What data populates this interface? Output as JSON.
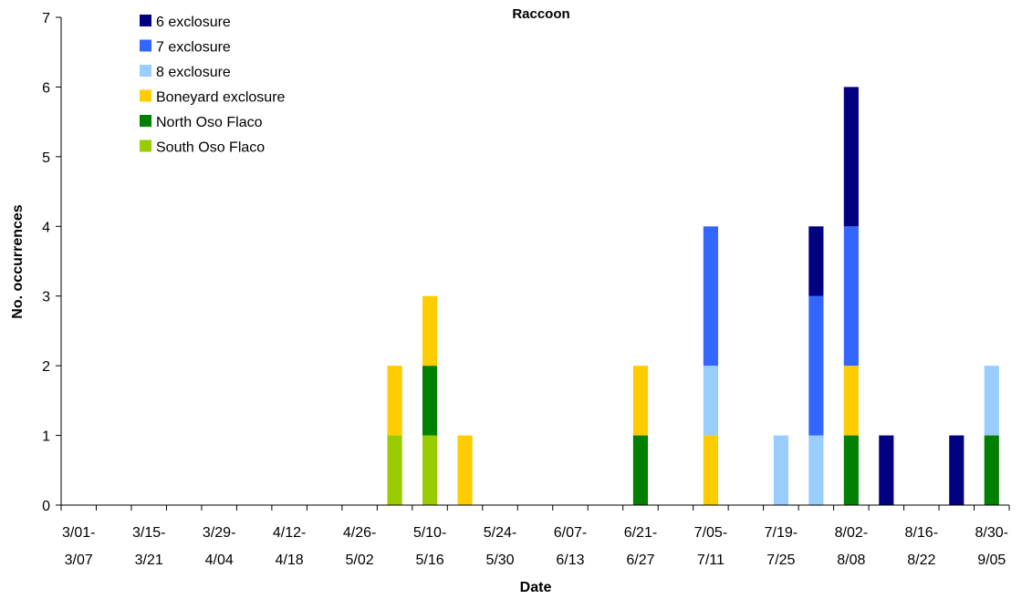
{
  "chart_data": {
    "type": "bar",
    "stacked": true,
    "title": "Raccoon",
    "xlabel": "Date",
    "ylabel": "No. occurrences",
    "ylim": [
      0,
      7
    ],
    "yticks": [
      0,
      1,
      2,
      3,
      4,
      5,
      6,
      7
    ],
    "grid": false,
    "legend_position": "top-left",
    "x_tick_labels": [
      [
        "3/01-",
        "3/07"
      ],
      [
        "3/15-",
        "3/21"
      ],
      [
        "3/29-",
        "4/04"
      ],
      [
        "4/12-",
        "4/18"
      ],
      [
        "4/26-",
        "5/02"
      ],
      [
        "5/10-",
        "5/16"
      ],
      [
        "5/24-",
        "5/30"
      ],
      [
        "6/07-",
        "6/13"
      ],
      [
        "6/21-",
        "6/27"
      ],
      [
        "7/05-",
        "7/11"
      ],
      [
        "7/19-",
        "7/25"
      ],
      [
        "8/02-",
        "8/08"
      ],
      [
        "8/16-",
        "8/22"
      ],
      [
        "8/30-",
        "9/05"
      ]
    ],
    "categories": [
      "3/01-3/07",
      "3/08-3/14",
      "3/15-3/21",
      "3/22-3/28",
      "3/29-4/04",
      "4/05-4/11",
      "4/12-4/18",
      "4/19-4/25",
      "4/26-5/02",
      "5/03-5/09",
      "5/10-5/16",
      "5/17-5/23",
      "5/24-5/30",
      "5/31-6/06",
      "6/07-6/13",
      "6/14-6/20",
      "6/21-6/27",
      "6/28-7/04",
      "7/05-7/11",
      "7/12-7/18",
      "7/19-7/25",
      "7/26-8/01",
      "8/02-8/08",
      "8/09-8/15",
      "8/16-8/22",
      "8/23-8/29",
      "8/30-9/05"
    ],
    "series": [
      {
        "name": "South Oso Flaco",
        "color": "#99cc00",
        "values": [
          0,
          0,
          0,
          0,
          0,
          0,
          0,
          0,
          0,
          1,
          1,
          0,
          0,
          0,
          0,
          0,
          0,
          0,
          0,
          0,
          0,
          0,
          0,
          0,
          0,
          0,
          0
        ]
      },
      {
        "name": "North Oso Flaco",
        "color": "#008000",
        "values": [
          0,
          0,
          0,
          0,
          0,
          0,
          0,
          0,
          0,
          0,
          1,
          0,
          0,
          0,
          0,
          0,
          1,
          0,
          0,
          0,
          0,
          0,
          1,
          0,
          0,
          0,
          1
        ]
      },
      {
        "name": "Boneyard exclosure",
        "color": "#ffcc00",
        "values": [
          0,
          0,
          0,
          0,
          0,
          0,
          0,
          0,
          0,
          1,
          1,
          1,
          0,
          0,
          0,
          0,
          1,
          0,
          1,
          0,
          0,
          0,
          1,
          0,
          0,
          0,
          0
        ]
      },
      {
        "name": "8 exclosure",
        "color": "#99ccff",
        "values": [
          0,
          0,
          0,
          0,
          0,
          0,
          0,
          0,
          0,
          0,
          0,
          0,
          0,
          0,
          0,
          0,
          0,
          0,
          1,
          0,
          1,
          1,
          0,
          0,
          0,
          0,
          1
        ]
      },
      {
        "name": "7 exclosure",
        "color": "#3366ff",
        "values": [
          0,
          0,
          0,
          0,
          0,
          0,
          0,
          0,
          0,
          0,
          0,
          0,
          0,
          0,
          0,
          0,
          0,
          0,
          2,
          0,
          0,
          2,
          2,
          0,
          0,
          0,
          0
        ]
      },
      {
        "name": "6 exclosure",
        "color": "#000080",
        "values": [
          0,
          0,
          0,
          0,
          0,
          0,
          0,
          0,
          0,
          0,
          0,
          0,
          0,
          0,
          0,
          0,
          0,
          0,
          0,
          0,
          0,
          1,
          2,
          1,
          0,
          1,
          0
        ]
      }
    ],
    "legend_order": [
      "6 exclosure",
      "7 exclosure",
      "8 exclosure",
      "Boneyard exclosure",
      "North Oso Flaco",
      "South Oso Flaco"
    ]
  }
}
